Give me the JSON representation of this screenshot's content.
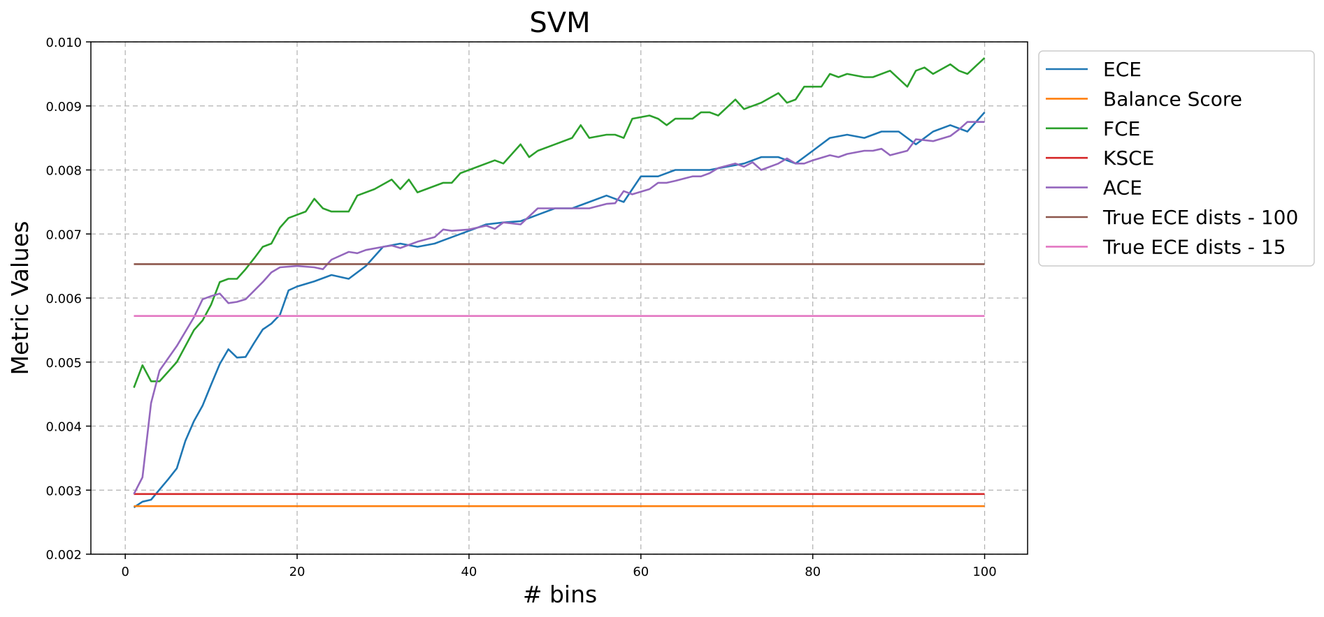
{
  "chart_data": {
    "type": "line",
    "title": "SVM",
    "xlabel": "# bins",
    "ylabel": "Metric Values",
    "xlim": [
      -4,
      105
    ],
    "ylim": [
      0.002,
      0.01
    ],
    "xticks": [
      0,
      20,
      40,
      60,
      80,
      100
    ],
    "xtick_labels": [
      "0",
      "20",
      "40",
      "60",
      "80",
      "100"
    ],
    "yticks": [
      0.002,
      0.003,
      0.004,
      0.005,
      0.006,
      0.007,
      0.008,
      0.009,
      0.01
    ],
    "ytick_labels": [
      "0.002",
      "0.003",
      "0.004",
      "0.005",
      "0.006",
      "0.007",
      "0.008",
      "0.009",
      "0.010"
    ],
    "grid": true,
    "legend_position": "outside-right",
    "series": [
      {
        "name": "ECE",
        "color": "#1f77b4",
        "x": [
          1,
          2,
          3,
          4,
          5,
          6,
          7,
          8,
          9,
          10,
          11,
          12,
          13,
          14,
          15,
          16,
          17,
          18,
          19,
          20,
          22,
          24,
          26,
          28,
          30,
          32,
          34,
          36,
          38,
          40,
          42,
          44,
          46,
          48,
          50,
          52,
          54,
          56,
          58,
          60,
          62,
          64,
          66,
          68,
          70,
          72,
          74,
          76,
          78,
          80,
          82,
          84,
          86,
          88,
          90,
          92,
          94,
          96,
          98,
          100
        ],
        "y": [
          0.00273,
          0.00282,
          0.00285,
          0.00301,
          0.00317,
          0.00334,
          0.00377,
          0.00408,
          0.00432,
          0.00465,
          0.00497,
          0.0052,
          0.00507,
          0.00508,
          0.0053,
          0.00551,
          0.0056,
          0.00574,
          0.00612,
          0.00618,
          0.00626,
          0.00636,
          0.0063,
          0.0065,
          0.0068,
          0.00685,
          0.0068,
          0.00685,
          0.00695,
          0.00705,
          0.00715,
          0.00718,
          0.0072,
          0.0073,
          0.0074,
          0.0074,
          0.0075,
          0.0076,
          0.0075,
          0.0079,
          0.0079,
          0.008,
          0.008,
          0.008,
          0.00805,
          0.0081,
          0.0082,
          0.0082,
          0.0081,
          0.0083,
          0.0085,
          0.00855,
          0.0085,
          0.0086,
          0.0086,
          0.0084,
          0.0086,
          0.0087,
          0.0086,
          0.0089
        ]
      },
      {
        "name": "Balance Score",
        "color": "#ff7f0e",
        "x": [
          1,
          100
        ],
        "y": [
          0.00275,
          0.00275
        ]
      },
      {
        "name": "FCE",
        "color": "#2ca02c",
        "x": [
          1,
          2,
          3,
          4,
          6,
          8,
          9,
          10,
          11,
          12,
          13,
          14,
          15,
          16,
          17,
          18,
          19,
          21,
          22,
          23,
          24,
          26,
          27,
          29,
          31,
          32,
          33,
          34,
          37,
          38,
          39,
          43,
          44,
          46,
          47,
          48,
          50,
          52,
          53,
          54,
          56,
          57,
          58,
          59,
          61,
          62,
          63,
          64,
          66,
          67,
          68,
          69,
          71,
          72,
          74,
          76,
          77,
          78,
          79,
          81,
          82,
          83,
          84,
          86,
          87,
          89,
          91,
          92,
          93,
          94,
          96,
          97,
          98,
          100
        ],
        "y": [
          0.0046,
          0.00495,
          0.0047,
          0.0047,
          0.005,
          0.0055,
          0.00565,
          0.0059,
          0.00625,
          0.0063,
          0.0063,
          0.00645,
          0.00662,
          0.0068,
          0.00685,
          0.0071,
          0.00725,
          0.00735,
          0.00755,
          0.0074,
          0.00735,
          0.00735,
          0.0076,
          0.0077,
          0.00785,
          0.0077,
          0.00785,
          0.00765,
          0.0078,
          0.0078,
          0.00795,
          0.00815,
          0.0081,
          0.0084,
          0.0082,
          0.0083,
          0.0084,
          0.0085,
          0.0087,
          0.0085,
          0.00855,
          0.00855,
          0.0085,
          0.0088,
          0.00885,
          0.0088,
          0.0087,
          0.0088,
          0.0088,
          0.0089,
          0.0089,
          0.00885,
          0.0091,
          0.00895,
          0.00905,
          0.0092,
          0.00905,
          0.0091,
          0.0093,
          0.0093,
          0.0095,
          0.00945,
          0.0095,
          0.00945,
          0.00945,
          0.00955,
          0.0093,
          0.00955,
          0.0096,
          0.0095,
          0.00965,
          0.00955,
          0.0095,
          0.00975
        ]
      },
      {
        "name": "KSCE",
        "color": "#d62728",
        "x": [
          1,
          100
        ],
        "y": [
          0.00294,
          0.00294
        ]
      },
      {
        "name": "ACE",
        "color": "#9467bd",
        "x": [
          1,
          2,
          3,
          4,
          6,
          8,
          9,
          10,
          11,
          12,
          13,
          14,
          16,
          17,
          18,
          20,
          22,
          23,
          24,
          26,
          27,
          28,
          30,
          31,
          32,
          34,
          36,
          37,
          38,
          40,
          42,
          43,
          44,
          46,
          48,
          50,
          52,
          54,
          56,
          57,
          58,
          59,
          61,
          62,
          63,
          64,
          66,
          67,
          68,
          69,
          71,
          72,
          73,
          74,
          76,
          77,
          78,
          79,
          80,
          82,
          83,
          84,
          86,
          87,
          88,
          89,
          91,
          92,
          94,
          96,
          97,
          98,
          100
        ],
        "y": [
          0.00294,
          0.0032,
          0.00436,
          0.00487,
          0.00525,
          0.0057,
          0.00598,
          0.00603,
          0.00607,
          0.00592,
          0.00594,
          0.00598,
          0.00625,
          0.0064,
          0.00648,
          0.0065,
          0.00648,
          0.00645,
          0.0066,
          0.00672,
          0.0067,
          0.00675,
          0.0068,
          0.00682,
          0.00678,
          0.00688,
          0.00695,
          0.00707,
          0.00705,
          0.00707,
          0.00713,
          0.00708,
          0.00718,
          0.00715,
          0.0074,
          0.0074,
          0.0074,
          0.0074,
          0.00747,
          0.00748,
          0.00767,
          0.00762,
          0.0077,
          0.0078,
          0.0078,
          0.00783,
          0.0079,
          0.0079,
          0.00795,
          0.00803,
          0.0081,
          0.00805,
          0.00812,
          0.008,
          0.0081,
          0.00818,
          0.0081,
          0.0081,
          0.00815,
          0.00823,
          0.0082,
          0.00825,
          0.0083,
          0.0083,
          0.00833,
          0.00823,
          0.0083,
          0.00848,
          0.00845,
          0.00853,
          0.00863,
          0.00875,
          0.00875
        ]
      },
      {
        "name": "True ECE dists - 100",
        "color": "#8c564b",
        "x": [
          1,
          100
        ],
        "y": [
          0.00653,
          0.00653
        ]
      },
      {
        "name": "True ECE dists - 15",
        "color": "#e377c2",
        "x": [
          1,
          100
        ],
        "y": [
          0.00572,
          0.00572
        ]
      }
    ]
  }
}
